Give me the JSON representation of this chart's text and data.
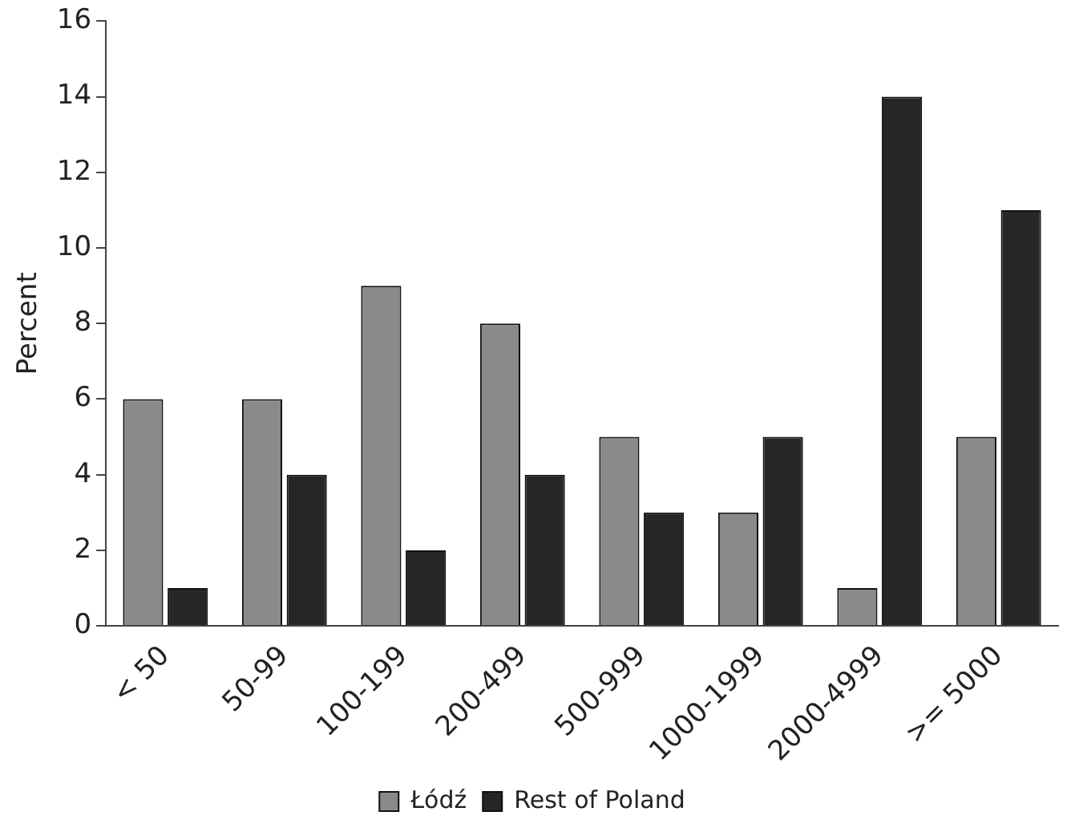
{
  "chart_data": {
    "type": "bar",
    "ylabel": "Percent",
    "categories": [
      "< 50",
      "50-99",
      "100-199",
      "200-499",
      "500-999",
      "1000-1999",
      "2000-4999",
      ">= 5000"
    ],
    "series": [
      {
        "name": "Łódź",
        "color": "#8a8a8a",
        "values": [
          6,
          6,
          9,
          8,
          5,
          3,
          1,
          5
        ]
      },
      {
        "name": "Rest of Poland",
        "color": "#262626",
        "values": [
          1,
          4,
          2,
          4,
          3,
          5,
          14,
          11
        ]
      }
    ],
    "ylim": [
      0,
      16
    ],
    "yticks": [
      0,
      2,
      4,
      6,
      8,
      10,
      12,
      14,
      16
    ],
    "grid": false,
    "legend": "bottom"
  }
}
